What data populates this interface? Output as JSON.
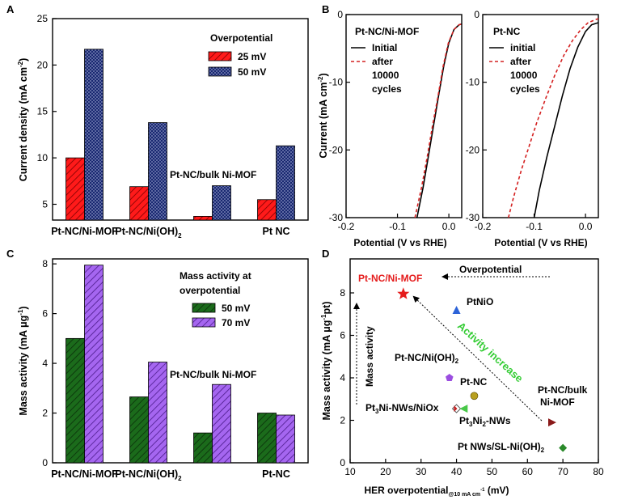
{
  "chart_data": [
    {
      "panel": "A",
      "type": "bar",
      "categories": [
        "Pt-NC/Ni-MOF",
        "Pt-NC/Ni(OH)2",
        "Pt-NC/bulk Ni-MOF",
        "Pt NC"
      ],
      "category_labels": [
        "Pt-NC/Ni-MOF",
        "Pt-NC/Ni(OH)",
        "",
        "Pt NC"
      ],
      "category_subscripts": [
        "",
        "2",
        "",
        ""
      ],
      "annotation": "Pt-NC/bulk Ni-MOF",
      "series": [
        {
          "name": "25 mV",
          "values": [
            10.0,
            6.9,
            3.7,
            5.5
          ],
          "color": "#ff1a1a",
          "hatch": "#7a0000"
        },
        {
          "name": "50 mV",
          "values": [
            21.7,
            13.8,
            7.0,
            11.3
          ],
          "color": "#0f1f6a",
          "hatch": "#8a93c2"
        }
      ],
      "legend_title": "Overpotential",
      "legend_position": "top-right",
      "ylabel": "Current density (mA cm",
      "ylabel_sup": "-2",
      "ylabel_end": ")",
      "ylim": [
        3.3,
        25
      ],
      "yticks": [
        5,
        10,
        15,
        20,
        25
      ]
    },
    {
      "panel": "B",
      "type": "line",
      "subplots": [
        {
          "title": "Pt-NC/Ni-MOF",
          "series": [
            {
              "name": "Initial",
              "style": "solid",
              "color": "#000000",
              "x": [
                -0.062,
                -0.05,
                -0.04,
                -0.03,
                -0.02,
                -0.01,
                0.0,
                0.01,
                0.02,
                0.025
              ],
              "y": [
                -30,
                -25.5,
                -21,
                -16.5,
                -12,
                -7.6,
                -4.2,
                -2.2,
                -1.5,
                -1.4
              ]
            },
            {
              "name": "after 10000 cycles",
              "style": "dashed",
              "color": "#d42020",
              "x": [
                -0.066,
                -0.053,
                -0.042,
                -0.032,
                -0.021,
                -0.011,
                -0.001,
                0.01,
                0.02,
                0.025
              ],
              "y": [
                -30,
                -25.5,
                -21,
                -16.5,
                -12,
                -7.6,
                -4.2,
                -2.2,
                -1.5,
                -1.4
              ]
            }
          ],
          "legend_lines": [
            "Initial",
            "after",
            "10000",
            "cycles"
          ],
          "xlim": [
            -0.2,
            0.025
          ],
          "xticks": [
            -0.2,
            -0.1,
            0.0
          ],
          "ylim": [
            -30,
            0
          ],
          "yticks": [
            0,
            -10,
            -20,
            -30
          ]
        },
        {
          "title": "Pt-NC",
          "series": [
            {
              "name": "initial",
              "style": "solid",
              "color": "#000000",
              "x": [
                -0.1,
                -0.09,
                -0.075,
                -0.06,
                -0.045,
                -0.03,
                -0.015,
                0.0,
                0.012,
                0.025
              ],
              "y": [
                -30,
                -26,
                -21,
                -16.5,
                -12,
                -8,
                -4.8,
                -2.5,
                -1.5,
                -1.2
              ]
            },
            {
              "name": "after 10000 cycles",
              "style": "dashed",
              "color": "#d42020",
              "x": [
                -0.15,
                -0.14,
                -0.125,
                -0.11,
                -0.095,
                -0.078,
                -0.06,
                -0.042,
                -0.025,
                -0.01,
                0.005,
                0.025
              ],
              "y": [
                -30,
                -27,
                -23,
                -19.5,
                -16,
                -12.5,
                -9,
                -6,
                -3.8,
                -2.3,
                -1.2,
                -0.6
              ]
            }
          ],
          "legend_lines": [
            "initial",
            "after",
            "10000",
            "cycles"
          ],
          "xlim": [
            -0.2,
            0.025
          ],
          "xticks": [
            -0.2,
            -0.1,
            0.0
          ],
          "ylim": [
            -30,
            0
          ],
          "yticks": [
            0,
            -10,
            -20,
            -30
          ]
        }
      ],
      "xlabel": "Potential (V vs RHE)",
      "ylabel": "Current (mA cm",
      "ylabel_sup": "-2",
      "ylabel_end": ")"
    },
    {
      "panel": "C",
      "type": "bar",
      "categories": [
        "Pt-NC/Ni-MOF",
        "Pt-NC/Ni(OH)2",
        "Pt-NC/bulk Ni-MOF",
        "Pt-NC"
      ],
      "category_labels": [
        "Pt-NC/Ni-MOF",
        "Pt-NC/Ni(OH)",
        "",
        "Pt-NC"
      ],
      "category_subscripts": [
        "",
        "2",
        "",
        ""
      ],
      "annotation": "Pt-NC/bulk Ni-MOF",
      "series": [
        {
          "name": "50 mV",
          "values": [
            5.0,
            2.65,
            1.2,
            2.0
          ],
          "color": "#1b6b1b",
          "hatch": "#0a2e0a"
        },
        {
          "name": "70 mV",
          "values": [
            7.95,
            4.05,
            3.15,
            1.92
          ],
          "color": "#a566f0",
          "hatch": "#4a1a8a"
        }
      ],
      "legend_title": [
        "Mass activity at",
        "overpotential"
      ],
      "legend_position": "top-right",
      "ylabel": "Mass activity (mA μg",
      "ylabel_sup": "-1",
      "ylabel_end": ")",
      "ylim": [
        0,
        8.2
      ],
      "yticks": [
        0,
        2,
        4,
        6,
        8
      ]
    },
    {
      "panel": "D",
      "type": "scatter",
      "points": [
        {
          "name": "Pt-NC/Ni-MOF",
          "x": 25,
          "y": 7.95,
          "marker": "star",
          "color": "#e51c1c",
          "label_color": "#e51c1c"
        },
        {
          "name": "PtNiO",
          "x": 40,
          "y": 7.2,
          "marker": "triangle",
          "color": "#2d63d8",
          "label_color": "#000000"
        },
        {
          "name": "Pt-NC/Ni(OH)2",
          "x": 38,
          "y": 4.0,
          "marker": "pentagon",
          "color": "#9b4de0",
          "label_color": "#000000"
        },
        {
          "name": "Pt-NC",
          "x": 45,
          "y": 3.15,
          "marker": "circle",
          "color": "#b8a020",
          "label_color": "#000000"
        },
        {
          "name": "Pt3Ni-NWs/NiOx",
          "x": 40,
          "y": 2.55,
          "marker": "diamond-open",
          "color": "#555555",
          "label_color": "#000000"
        },
        {
          "name": "Pt3Ni2-NWs",
          "x": 42,
          "y": 2.55,
          "marker": "triangle-left",
          "color": "#48c848",
          "label_color": "#000000"
        },
        {
          "name": "Pt-NC/bulk Ni-MOF",
          "x": 67,
          "y": 1.9,
          "marker": "triangle-right",
          "color": "#8a1a1a",
          "label_color": "#000000"
        },
        {
          "name": "Pt NWs/SL-Ni(OH)2",
          "x": 70,
          "y": 0.7,
          "marker": "diamond",
          "color": "#2a8a2a",
          "label_color": "#000000"
        }
      ],
      "annotations": {
        "overpotential_arrow": "Overpotential",
        "mass_activity_arrow": "Mass activity",
        "trend_text": "Activity increase",
        "trend_color": "#33cc33"
      },
      "xlabel": "HER overpotential",
      "xlabel_sub": "@10 mA cm",
      "xlabel_sub_sup": "-1",
      "xlabel_end": " (mV)",
      "ylabel": "Mass activity (mA μg",
      "ylabel_sup": "-1",
      "ylabel_end": "pt)",
      "xlim": [
        10,
        80
      ],
      "ylim": [
        0,
        9.6
      ],
      "xticks": [
        10,
        20,
        30,
        40,
        50,
        60,
        70,
        80
      ],
      "yticks": [
        0,
        2,
        4,
        6,
        8
      ]
    }
  ],
  "panel_letters": [
    "A",
    "B",
    "C",
    "D"
  ]
}
